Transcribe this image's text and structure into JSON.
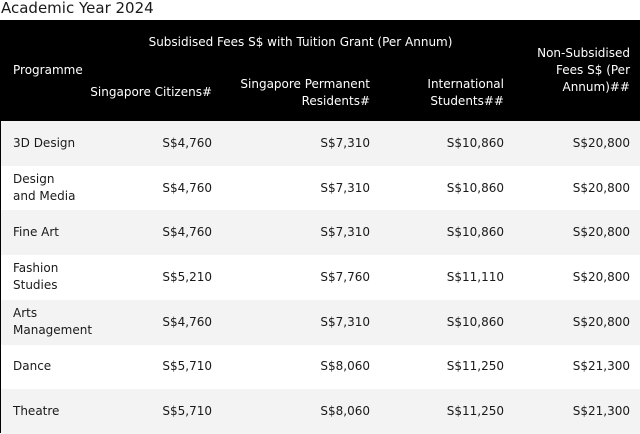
{
  "page": {
    "title": "Academic Year 2024"
  },
  "table": {
    "header": {
      "programme": "Programme",
      "subsidised_group": "Subsidised Fees S$ with Tuition Grant (Per Annum)",
      "singapore_citizens": "Singapore Citizens#",
      "permanent_residents": "Singapore Permanent Residents#",
      "international_students": "International Students##",
      "non_subsidised": "Non-Subsidised Fees S$ (Per Annum)##"
    },
    "rows": [
      {
        "programme": "3D Design",
        "citizens": "S$4,760",
        "pr": "S$7,310",
        "international": "S$10,860",
        "non_subsidised": "S$20,800"
      },
      {
        "programme": "Design and Media",
        "citizens": "S$4,760",
        "pr": "S$7,310",
        "international": "S$10,860",
        "non_subsidised": "S$20,800"
      },
      {
        "programme": "Fine Art",
        "citizens": "S$4,760",
        "pr": "S$7,310",
        "international": "S$10,860",
        "non_subsidised": "S$20,800"
      },
      {
        "programme": "Fashion Studies",
        "citizens": "S$5,210",
        "pr": "S$7,760",
        "international": "S$11,110",
        "non_subsidised": "S$20,800"
      },
      {
        "programme": "Arts Management",
        "citizens": "S$4,760",
        "pr": "S$7,310",
        "international": "S$10,860",
        "non_subsidised": "S$20,800"
      },
      {
        "programme": "Dance",
        "citizens": "S$5,710",
        "pr": "S$8,060",
        "international": "S$11,250",
        "non_subsidised": "S$21,300"
      },
      {
        "programme": "Theatre",
        "citizens": "S$5,710",
        "pr": "S$8,060",
        "international": "S$11,250",
        "non_subsidised": "S$21,300"
      }
    ]
  }
}
